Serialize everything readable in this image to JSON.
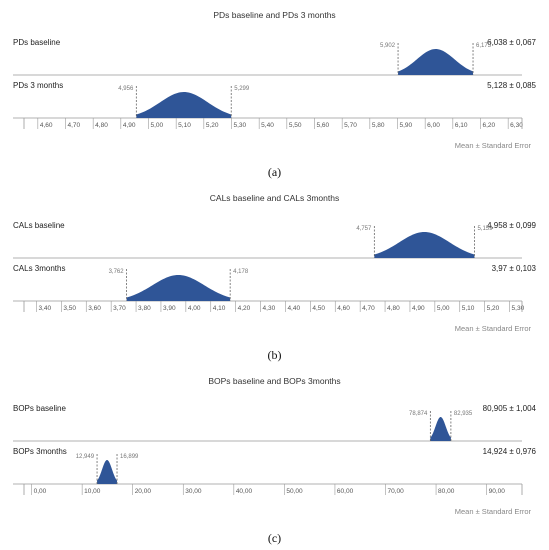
{
  "chart_data": [
    {
      "type": "area",
      "title": "PDs baseline and PDs 3 months",
      "caption": "(a)",
      "note": "Mean ± Standard Error",
      "xlim": [
        4.55,
        6.35
      ],
      "ticks": [
        "4,60",
        "4,70",
        "4,80",
        "4,90",
        "5,00",
        "5,10",
        "5,20",
        "5,30",
        "5,40",
        "5,50",
        "5,60",
        "5,70",
        "5,80",
        "5,90",
        "6,00",
        "6,10",
        "6,20",
        "6,30"
      ],
      "tick_values": [
        4.6,
        4.7,
        4.8,
        4.9,
        5.0,
        5.1,
        5.2,
        5.3,
        5.4,
        5.5,
        5.6,
        5.7,
        5.8,
        5.9,
        6.0,
        6.1,
        6.2,
        6.3
      ],
      "series": [
        {
          "name": "PDs baseline",
          "mean": 6.038,
          "se": 0.067,
          "stat": "6,038 ± 0,067",
          "lower": 5.902,
          "upper": 6.173,
          "lower_label": "5,902",
          "upper_label": "6,173"
        },
        {
          "name": "PDs 3 months",
          "mean": 5.128,
          "se": 0.085,
          "stat": "5,128 ± 0,085",
          "lower": 4.956,
          "upper": 5.299,
          "lower_label": "4,956",
          "upper_label": "5,299"
        }
      ]
    },
    {
      "type": "area",
      "title": "CALs baseline and CALs 3months",
      "caption": "(b)",
      "note": "Mean ± Standard Error",
      "xlim": [
        3.35,
        5.35
      ],
      "ticks": [
        "3,40",
        "3,50",
        "3,60",
        "3,70",
        "3,80",
        "3,90",
        "4,00",
        "4,10",
        "4,20",
        "4,30",
        "4,40",
        "4,50",
        "4,60",
        "4,70",
        "4,80",
        "4,90",
        "5,00",
        "5,10",
        "5,20",
        "5,30"
      ],
      "tick_values": [
        3.4,
        3.5,
        3.6,
        3.7,
        3.8,
        3.9,
        4.0,
        4.1,
        4.2,
        4.3,
        4.4,
        4.5,
        4.6,
        4.7,
        4.8,
        4.9,
        5.0,
        5.1,
        5.2,
        5.3
      ],
      "series": [
        {
          "name": "CALs baseline",
          "mean": 4.958,
          "se": 0.099,
          "stat": "4,958 ± 0,099",
          "lower": 4.757,
          "upper": 5.159,
          "lower_label": "4,757",
          "upper_label": "5,159"
        },
        {
          "name": "CALs 3months",
          "mean": 3.97,
          "se": 0.103,
          "stat": "3,97 ± 0,103",
          "lower": 3.762,
          "upper": 4.178,
          "lower_label": "3,762",
          "upper_label": "4,178"
        }
      ]
    },
    {
      "type": "area",
      "title": "BOPs baseline and BOPs 3months",
      "caption": "(c)",
      "note": "Mean ± Standard Error",
      "xlim": [
        -1.5,
        97
      ],
      "ticks": [
        "0,00",
        "10,00",
        "20,00",
        "30,00",
        "40,00",
        "50,00",
        "60,00",
        "70,00",
        "80,00",
        "90,00"
      ],
      "tick_values": [
        0,
        10,
        20,
        30,
        40,
        50,
        60,
        70,
        80,
        90
      ],
      "series": [
        {
          "name": "BOPs baseline",
          "mean": 80.905,
          "se": 1.004,
          "stat": "80,905 ± 1,004",
          "lower": 78.874,
          "upper": 82.935,
          "lower_label": "78,874",
          "upper_label": "82,935"
        },
        {
          "name": "BOPs 3months",
          "mean": 14.924,
          "se": 0.976,
          "stat": "14,924 ± 0,976",
          "lower": 12.949,
          "upper": 16.899,
          "lower_label": "12,949",
          "upper_label": "16,899"
        }
      ]
    }
  ],
  "colors": {
    "curve_fill": "#2f5597",
    "axis": "#999999",
    "dash": "#666666"
  }
}
